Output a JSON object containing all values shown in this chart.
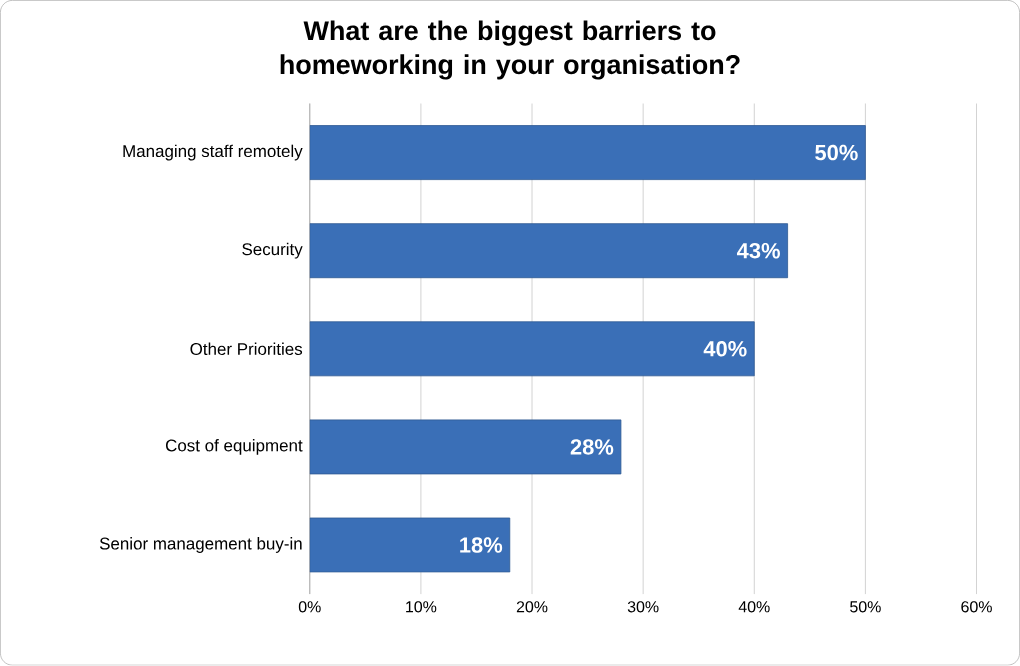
{
  "chart_data": {
    "type": "bar",
    "orientation": "horizontal",
    "title": "What are the biggest barriers to homeworking in your organisation?",
    "categories": [
      "Managing staff remotely",
      "Security",
      "Other Priorities",
      "Cost of equipment",
      "Senior management buy-in"
    ],
    "values": [
      50,
      43,
      40,
      28,
      18
    ],
    "value_labels": [
      "50%",
      "43%",
      "40%",
      "28%",
      "18%"
    ],
    "color": "#3a6fb7",
    "xlim": [
      0,
      60
    ],
    "xticks": [
      {
        "value": 0,
        "label": "0%"
      },
      {
        "value": 10,
        "label": "10%"
      },
      {
        "value": 20,
        "label": "20%"
      },
      {
        "value": 30,
        "label": "30%"
      },
      {
        "value": 40,
        "label": "40%"
      },
      {
        "value": 50,
        "label": "50%"
      },
      {
        "value": 60,
        "label": "60%"
      }
    ],
    "grid": "x"
  }
}
